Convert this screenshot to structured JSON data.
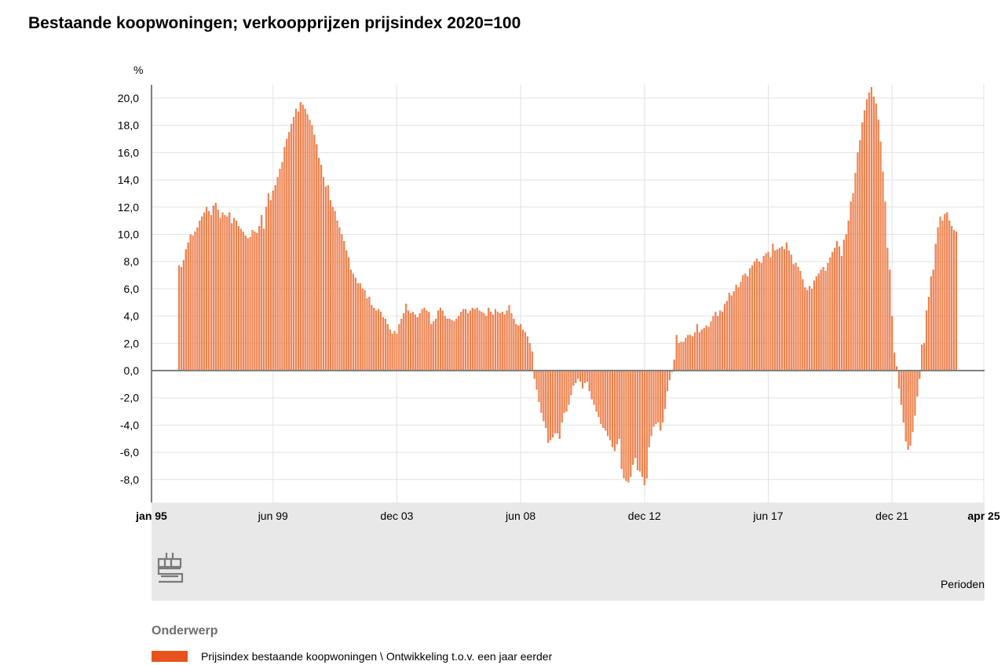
{
  "chart_data": {
    "type": "bar",
    "title": "Bestaande koopwoningen; verkoopprijzen prijsindex 2020=100",
    "ylabel": "%",
    "xlabel": "Perioden",
    "ylim": [
      -9.5,
      21
    ],
    "grid": true,
    "x_ticks": [
      "jan 95",
      "jun 99",
      "dec 03",
      "jun 08",
      "dec 12",
      "jun 17",
      "dec 21",
      "apr 25"
    ],
    "y_ticks": [
      -8.0,
      -6.0,
      -4.0,
      -2.0,
      0.0,
      2.0,
      4.0,
      6.0,
      8.0,
      10.0,
      12.0,
      14.0,
      16.0,
      18.0,
      20.0
    ],
    "y_tick_labels": [
      "-8,0",
      "-6,0",
      "-4,0",
      "-2,0",
      "0,0",
      "2,0",
      "4,0",
      "6,0",
      "8,0",
      "10,0",
      "12,0",
      "14,0",
      "16,0",
      "18,0",
      "20,0"
    ],
    "x_start": "1995-01",
    "x_end": "2025-04",
    "series": [
      {
        "name": "Prijsindex bestaande koopwoningen \\ Ontwikkeling t.o.v. een jaar eerder",
        "color": "#e8531d",
        "start": "1996-01",
        "values": [
          7.7,
          7.6,
          8.1,
          8.9,
          9.4,
          10.0,
          9.9,
          10.2,
          10.5,
          11.0,
          11.3,
          11.6,
          12.0,
          11.7,
          11.4,
          12.1,
          12.3,
          11.8,
          11.2,
          11.6,
          11.4,
          11.3,
          11.6,
          10.8,
          11.2,
          11.0,
          10.6,
          10.4,
          10.2,
          9.9,
          9.7,
          9.8,
          10.3,
          10.2,
          10.1,
          10.6,
          11.4,
          10.4,
          12.0,
          13.0,
          12.5,
          13.2,
          13.6,
          14.2,
          14.8,
          15.3,
          16.4,
          17.0,
          17.5,
          18.1,
          18.6,
          19.2,
          19.0,
          19.7,
          19.5,
          19.2,
          18.8,
          18.4,
          18.0,
          17.3,
          16.6,
          15.6,
          15.1,
          14.2,
          13.5,
          13.6,
          12.5,
          12.0,
          11.7,
          11.0,
          10.5,
          10.0,
          9.5,
          8.8,
          8.3,
          7.4,
          7.1,
          6.8,
          6.4,
          6.4,
          6.0,
          5.9,
          5.3,
          5.4,
          4.8,
          4.6,
          4.4,
          4.5,
          4.3,
          3.9,
          3.8,
          3.4,
          3.0,
          2.7,
          2.9,
          2.7,
          3.4,
          3.8,
          4.2,
          4.9,
          4.4,
          4.2,
          4.3,
          4.1,
          3.9,
          4.2,
          4.5,
          4.6,
          4.4,
          4.3,
          3.4,
          3.6,
          3.8,
          4.4,
          4.6,
          4.4,
          4.0,
          3.8,
          3.8,
          3.7,
          3.6,
          3.8,
          4.0,
          4.3,
          4.5,
          4.5,
          4.2,
          4.4,
          4.6,
          4.5,
          4.6,
          4.4,
          4.3,
          4.2,
          4.0,
          4.6,
          4.3,
          4.1,
          4.5,
          4.3,
          4.2,
          4.3,
          4.1,
          4.4,
          4.8,
          4.2,
          3.8,
          3.4,
          3.3,
          3.4,
          3.0,
          2.8,
          2.5,
          2.0,
          1.4,
          -0.6,
          -1.4,
          -2.3,
          -3.1,
          -3.7,
          -4.2,
          -5.3,
          -5.1,
          -4.9,
          -4.6,
          -4.6,
          -5.0,
          -3.8,
          -3.1,
          -3.0,
          -2.5,
          -1.8,
          -1.1,
          -0.9,
          -0.6,
          -0.8,
          -1.3,
          -0.9,
          -0.8,
          -1.5,
          -2.1,
          -2.5,
          -3.0,
          -3.4,
          -3.9,
          -4.2,
          -4.4,
          -4.8,
          -5.1,
          -5.6,
          -5.9,
          -5.4,
          -5.0,
          -7.2,
          -7.9,
          -8.1,
          -8.2,
          -7.8,
          -6.9,
          -6.4,
          -7.3,
          -7.4,
          -7.8,
          -8.4,
          -7.9,
          -5.6,
          -4.8,
          -4.1,
          -3.9,
          -3.8,
          -4.4,
          -3.8,
          -2.8,
          -1.5,
          -0.7,
          -0.1,
          0.8,
          2.6,
          2.0,
          2.1,
          2.1,
          2.4,
          2.6,
          2.6,
          2.5,
          2.8,
          3.4,
          2.8,
          3.0,
          3.1,
          3.3,
          3.2,
          3.6,
          4.0,
          4.3,
          4.0,
          4.4,
          4.3,
          4.9,
          5.1,
          5.7,
          5.5,
          5.8,
          6.3,
          6.1,
          6.5,
          7.0,
          7.1,
          6.9,
          7.5,
          7.7,
          8.0,
          8.2,
          8.0,
          7.9,
          8.4,
          8.6,
          8.7,
          8.3,
          9.3,
          8.8,
          8.9,
          9.0,
          9.1,
          8.9,
          9.4,
          8.8,
          8.5,
          7.8,
          7.9,
          7.6,
          7.3,
          6.7,
          6.1,
          5.9,
          6.2,
          6.0,
          6.6,
          6.9,
          7.1,
          7.4,
          7.6,
          7.3,
          7.9,
          8.3,
          8.7,
          9.0,
          9.5,
          9.1,
          8.4,
          9.6,
          10.0,
          11.0,
          12.4,
          13.0,
          14.5,
          16.0,
          16.9,
          18.2,
          19.1,
          19.9,
          20.4,
          20.8,
          20.1,
          19.6,
          18.4,
          16.8,
          14.6,
          12.4,
          9.0,
          7.4,
          4.0,
          1.3,
          0.3,
          -1.3,
          -2.5,
          -3.8,
          -5.2,
          -5.8,
          -5.5,
          -4.5,
          -3.3,
          -1.9,
          -0.6,
          1.9,
          2.0,
          4.4,
          5.4,
          6.9,
          7.4,
          9.3,
          10.5,
          11.3,
          11.0,
          11.5,
          11.6,
          11.0,
          10.6,
          10.3,
          10.2
        ]
      }
    ]
  },
  "legend": {
    "heading": "Onderwerp"
  },
  "colors": {
    "bar": "#e8531d",
    "bar_fill": "#ee8a55",
    "footer_band": "#e8e8e8",
    "grid": "#e2e2e2",
    "axis": "#7f7f7f",
    "logo": "#7a7a7a"
  },
  "logo": {
    "icon": "cbs-logo-icon"
  }
}
